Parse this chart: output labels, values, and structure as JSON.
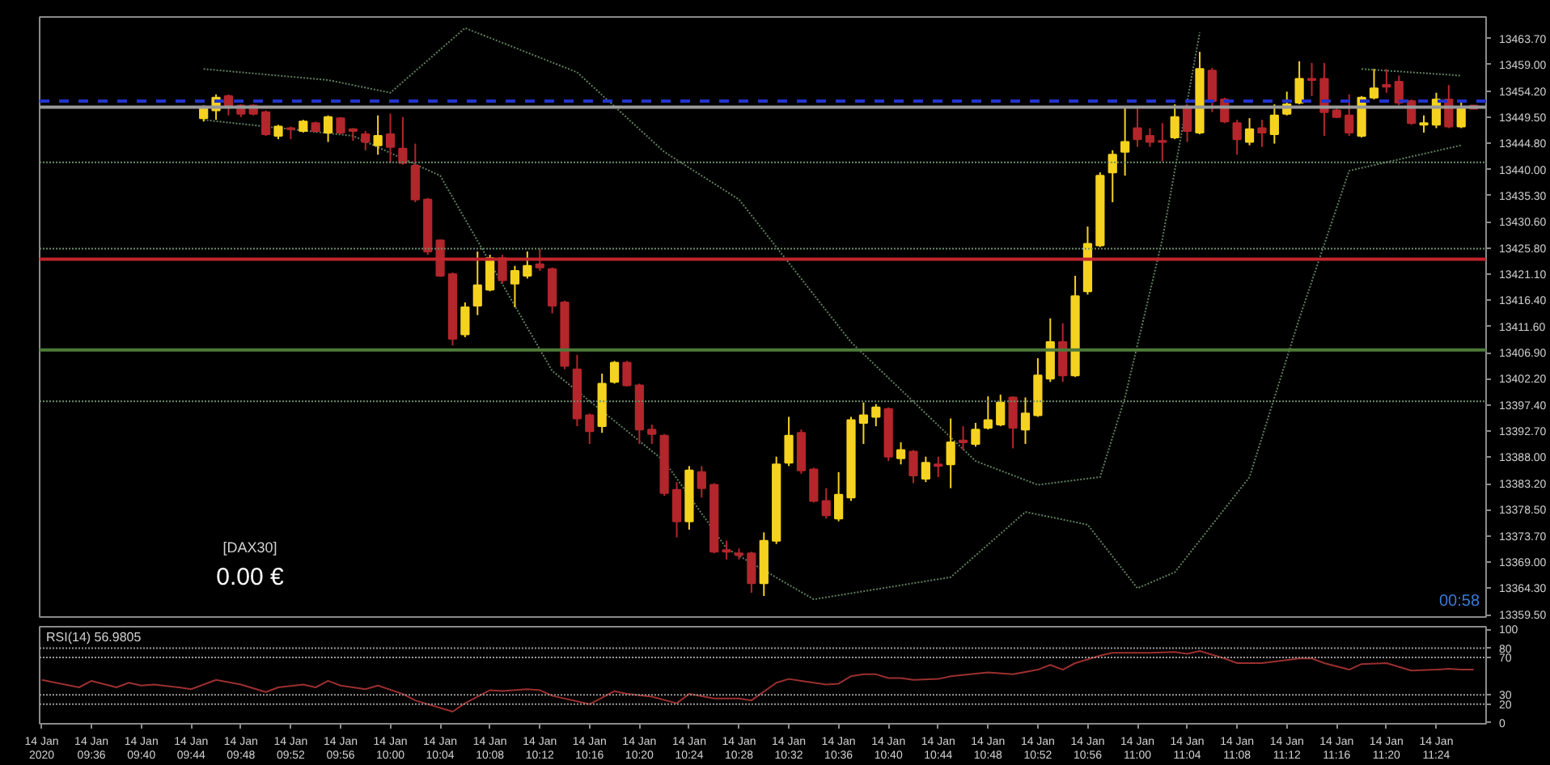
{
  "chart_data": [
    {
      "type": "candlestick",
      "grid": false,
      "tick_labels": "y",
      "annotations": [
        "[DAX30]",
        "0.00 €",
        "00:58"
      ],
      "xlim": [
        "2020-01-14T09:31:50",
        "2020-01-14T11:28"
      ],
      "ylim": [
        13359.1,
        13467.6
      ],
      "yticks": [
        {
          "value": 13463.7,
          "label": "13463.70"
        },
        {
          "value": 13459.0,
          "label": "13459.00"
        },
        {
          "value": 13454.2,
          "label": "13454.20"
        },
        {
          "value": 13449.5,
          "label": "13449.50"
        },
        {
          "value": 13444.8,
          "label": "13444.80"
        },
        {
          "value": 13440.0,
          "label": "13440.00"
        },
        {
          "value": 13435.3,
          "label": "13435.30"
        },
        {
          "value": 13430.6,
          "label": "13430.60"
        },
        {
          "value": 13425.8,
          "label": "13425.80"
        },
        {
          "value": 13421.1,
          "label": "13421.10"
        },
        {
          "value": 13416.4,
          "label": "13416.40"
        },
        {
          "value": 13411.6,
          "label": "13411.60"
        },
        {
          "value": 13406.9,
          "label": "13406.90"
        },
        {
          "value": 13402.2,
          "label": "13402.20"
        },
        {
          "value": 13397.4,
          "label": "13397.40"
        },
        {
          "value": 13392.7,
          "label": "13392.70"
        },
        {
          "value": 13388.0,
          "label": "13388.00"
        },
        {
          "value": 13383.2,
          "label": "13383.20"
        },
        {
          "value": 13378.5,
          "label": "13378.50"
        },
        {
          "value": 13373.7,
          "label": "13373.70"
        },
        {
          "value": 13369.0,
          "label": "13369.00"
        },
        {
          "value": 13364.3,
          "label": "13364.30"
        },
        {
          "value": 13359.5,
          "label": "13359.50"
        }
      ],
      "ref_lines": [
        {
          "axis": "y",
          "value": 13423.8,
          "color": "#c0262c",
          "line_style": "solid"
        },
        {
          "axis": "y",
          "value": 13407.4,
          "color": "#4e7a3a",
          "line_style": "solid"
        },
        {
          "axis": "y",
          "value": 13441.3,
          "color": "#6f8f6f",
          "line_style": "dotted"
        },
        {
          "axis": "y",
          "value": 13425.7,
          "color": "#6f8f6f",
          "line_style": "dotted"
        },
        {
          "axis": "y",
          "value": 13398.1,
          "color": "#6f8f6f",
          "line_style": "dotted"
        },
        {
          "axis": "y",
          "value": 13452.4,
          "color": "#2233cc",
          "line_style": "dashed"
        },
        {
          "axis": "y",
          "value": 13451.3,
          "color": "#9a9a9a",
          "line_style": "solid"
        }
      ],
      "series": [
        {
          "type": "line",
          "color": "#5f7f5f",
          "line_style": "dotted",
          "x": [
            "2020-01-14T09:45",
            "2020-01-14T09:55",
            "2020-01-14T10:00",
            "2020-01-14T10:06",
            "2020-01-14T10:15",
            "2020-01-14T10:22",
            "2020-01-14T10:28",
            "2020-01-14T10:37",
            "2020-01-14T10:47",
            "2020-01-14T10:52",
            "2020-01-14T10:57",
            "2020-01-14T10:59",
            "2020-01-14T11:02",
            "2020-01-14T11:05",
            "2020-01-14T11:10",
            "2020-01-14T11:18",
            "2020-01-14T11:26"
          ],
          "values": [
            13458.2,
            13456.2,
            13453.9,
            13465.6,
            13457.6,
            13443.2,
            13434.6,
            13408.8,
            13387.3,
            13383.0,
            13384.4,
            13398.8,
            13427.4,
            13464.8,
            null,
            13458.2,
            13457.0
          ]
        },
        {
          "type": "line",
          "color": "#5f7f5f",
          "line_style": "dotted",
          "x": [
            "2020-01-14T09:45",
            "2020-01-14T09:57",
            "2020-01-14T10:04",
            "2020-01-14T10:13",
            "2020-01-14T10:22",
            "2020-01-14T10:27",
            "2020-01-14T10:34",
            "2020-01-14T10:45",
            "2020-01-14T10:51",
            "2020-01-14T10:56",
            "2020-01-14T11:00",
            "2020-01-14T11:03",
            "2020-01-14T11:09",
            "2020-01-14T11:13",
            "2020-01-14T11:17",
            "2020-01-14T11:26"
          ],
          "values": [
            13449.0,
            13446.1,
            13438.9,
            13403.6,
            13387.3,
            13371.5,
            13362.3,
            13366.3,
            13378.1,
            13375.8,
            13364.3,
            13367.2,
            13384.4,
            13413.1,
            13439.8,
            13444.4
          ]
        }
      ],
      "x": [
        "2020-01-14T09:45",
        "2020-01-14T09:46",
        "2020-01-14T09:47",
        "2020-01-14T09:48",
        "2020-01-14T09:49",
        "2020-01-14T09:50",
        "2020-01-14T09:51",
        "2020-01-14T09:52",
        "2020-01-14T09:53",
        "2020-01-14T09:54",
        "2020-01-14T09:55",
        "2020-01-14T09:56",
        "2020-01-14T09:57",
        "2020-01-14T09:58",
        "2020-01-14T09:59",
        "2020-01-14T10:00",
        "2020-01-14T10:01",
        "2020-01-14T10:02",
        "2020-01-14T10:03",
        "2020-01-14T10:04",
        "2020-01-14T10:05",
        "2020-01-14T10:06",
        "2020-01-14T10:07",
        "2020-01-14T10:08",
        "2020-01-14T10:09",
        "2020-01-14T10:10",
        "2020-01-14T10:11",
        "2020-01-14T10:12",
        "2020-01-14T10:13",
        "2020-01-14T10:14",
        "2020-01-14T10:15",
        "2020-01-14T10:16",
        "2020-01-14T10:17",
        "2020-01-14T10:18",
        "2020-01-14T10:19",
        "2020-01-14T10:20",
        "2020-01-14T10:21",
        "2020-01-14T10:22",
        "2020-01-14T10:23",
        "2020-01-14T10:24",
        "2020-01-14T10:25",
        "2020-01-14T10:26",
        "2020-01-14T10:27",
        "2020-01-14T10:28",
        "2020-01-14T10:29",
        "2020-01-14T10:30",
        "2020-01-14T10:31",
        "2020-01-14T10:32",
        "2020-01-14T10:33",
        "2020-01-14T10:34",
        "2020-01-14T10:35",
        "2020-01-14T10:36",
        "2020-01-14T10:37",
        "2020-01-14T10:38",
        "2020-01-14T10:39",
        "2020-01-14T10:40",
        "2020-01-14T10:41",
        "2020-01-14T10:42",
        "2020-01-14T10:43",
        "2020-01-14T10:44",
        "2020-01-14T10:45",
        "2020-01-14T10:46",
        "2020-01-14T10:47",
        "2020-01-14T10:48",
        "2020-01-14T10:49",
        "2020-01-14T10:50",
        "2020-01-14T10:51",
        "2020-01-14T10:52",
        "2020-01-14T10:53",
        "2020-01-14T10:54",
        "2020-01-14T10:55",
        "2020-01-14T10:56",
        "2020-01-14T10:57",
        "2020-01-14T10:58",
        "2020-01-14T10:59",
        "2020-01-14T11:00",
        "2020-01-14T11:01",
        "2020-01-14T11:02",
        "2020-01-14T11:03",
        "2020-01-14T11:04",
        "2020-01-14T11:05",
        "2020-01-14T11:06",
        "2020-01-14T11:07",
        "2020-01-14T11:08",
        "2020-01-14T11:09",
        "2020-01-14T11:10",
        "2020-01-14T11:11",
        "2020-01-14T11:12",
        "2020-01-14T11:13",
        "2020-01-14T11:14",
        "2020-01-14T11:15",
        "2020-01-14T11:16",
        "2020-01-14T11:17",
        "2020-01-14T11:18",
        "2020-01-14T11:19",
        "2020-01-14T11:20",
        "2020-01-14T11:21",
        "2020-01-14T11:22",
        "2020-01-14T11:23",
        "2020-01-14T11:24",
        "2020-01-14T11:25",
        "2020-01-14T11:26",
        "2020-01-14T11:27"
      ],
      "ohlc": [
        [
          13449.3,
          13451.6,
          13448.7,
          13451.0
        ],
        [
          13450.7,
          13453.6,
          13449.0,
          13453.0
        ],
        [
          13453.3,
          13453.6,
          13449.8,
          13451.6
        ],
        [
          13451.6,
          13451.8,
          13449.5,
          13450.1
        ],
        [
          13451.6,
          13451.8,
          13449.8,
          13450.1
        ],
        [
          13450.4,
          13450.7,
          13446.1,
          13446.4
        ],
        [
          13446.1,
          13448.1,
          13445.5,
          13447.8
        ],
        [
          13447.5,
          13447.8,
          13445.5,
          13447.3
        ],
        [
          13447.0,
          13449.0,
          13446.7,
          13448.7
        ],
        [
          13448.4,
          13448.7,
          13446.7,
          13447.0
        ],
        [
          13446.7,
          13449.8,
          13445.0,
          13449.5
        ],
        [
          13449.3,
          13449.5,
          13446.4,
          13446.7
        ],
        [
          13447.3,
          13447.5,
          13445.2,
          13447.0
        ],
        [
          13446.4,
          13447.0,
          13443.5,
          13445.0
        ],
        [
          13444.4,
          13449.8,
          13442.7,
          13446.1
        ],
        [
          13446.4,
          13450.1,
          13441.2,
          13444.1
        ],
        [
          13443.8,
          13449.5,
          13440.9,
          13441.2
        ],
        [
          13440.7,
          13444.7,
          13434.1,
          13434.6
        ],
        [
          13434.6,
          13434.9,
          13424.6,
          13425.2
        ],
        [
          13427.2,
          13427.4,
          13420.6,
          13420.8
        ],
        [
          13421.1,
          13421.4,
          13408.2,
          13409.4
        ],
        [
          13410.2,
          13416.0,
          13409.7,
          13415.1
        ],
        [
          13415.4,
          13425.2,
          13413.7,
          13419.1
        ],
        [
          13418.3,
          13424.6,
          13418.0,
          13424.0
        ],
        [
          13424.0,
          13424.6,
          13419.4,
          13420.0
        ],
        [
          13419.4,
          13422.6,
          13415.1,
          13421.7
        ],
        [
          13420.8,
          13425.2,
          13420.3,
          13422.6
        ],
        [
          13422.9,
          13425.7,
          13421.7,
          13422.3
        ],
        [
          13422.0,
          13422.3,
          13414.0,
          13415.4
        ],
        [
          13416.0,
          13416.3,
          13403.9,
          13404.5
        ],
        [
          13403.9,
          13406.5,
          13393.6,
          13395.0
        ],
        [
          13395.6,
          13395.9,
          13390.4,
          13392.7
        ],
        [
          13393.6,
          13403.1,
          13392.4,
          13401.3
        ],
        [
          13401.6,
          13405.4,
          13401.3,
          13405.1
        ],
        [
          13405.1,
          13405.4,
          13400.8,
          13401.0
        ],
        [
          13401.0,
          13401.3,
          13390.4,
          13393.0
        ],
        [
          13393.0,
          13393.9,
          13390.4,
          13392.2
        ],
        [
          13391.9,
          13392.2,
          13381.0,
          13381.5
        ],
        [
          13382.1,
          13383.5,
          13373.5,
          13376.4
        ],
        [
          13376.4,
          13386.4,
          13374.9,
          13385.6
        ],
        [
          13385.3,
          13386.4,
          13380.7,
          13382.4
        ],
        [
          13383.0,
          13383.3,
          13370.6,
          13370.9
        ],
        [
          13371.2,
          13372.9,
          13369.5,
          13370.9
        ],
        [
          13370.6,
          13371.5,
          13369.5,
          13370.3
        ],
        [
          13370.6,
          13370.9,
          13363.5,
          13365.2
        ],
        [
          13365.2,
          13374.4,
          13362.9,
          13372.9
        ],
        [
          13372.9,
          13388.1,
          13372.3,
          13386.7
        ],
        [
          13387.0,
          13395.3,
          13386.4,
          13391.9
        ],
        [
          13392.4,
          13393.0,
          13385.0,
          13385.6
        ],
        [
          13385.8,
          13386.1,
          13379.8,
          13380.1
        ],
        [
          13380.1,
          13382.4,
          13376.9,
          13377.5
        ],
        [
          13376.9,
          13385.3,
          13376.4,
          13381.2
        ],
        [
          13380.7,
          13395.3,
          13380.1,
          13394.7
        ],
        [
          13394.2,
          13397.9,
          13390.4,
          13395.6
        ],
        [
          13395.3,
          13397.6,
          13393.6,
          13397.0
        ],
        [
          13396.7,
          13397.0,
          13387.3,
          13388.1
        ],
        [
          13387.8,
          13390.7,
          13386.7,
          13389.3
        ],
        [
          13389.0,
          13389.3,
          13383.3,
          13384.7
        ],
        [
          13384.1,
          13388.1,
          13383.5,
          13387.0
        ],
        [
          13386.7,
          13388.1,
          13384.4,
          13386.4
        ],
        [
          13386.7,
          13395.0,
          13382.4,
          13390.7
        ],
        [
          13391.0,
          13393.6,
          13389.3,
          13390.7
        ],
        [
          13390.4,
          13394.2,
          13389.9,
          13393.0
        ],
        [
          13393.3,
          13399.0,
          13393.0,
          13394.7
        ],
        [
          13393.9,
          13399.3,
          13393.6,
          13397.9
        ],
        [
          13398.8,
          13399.0,
          13389.6,
          13393.3
        ],
        [
          13393.0,
          13398.8,
          13390.4,
          13395.9
        ],
        [
          13395.6,
          13405.9,
          13395.3,
          13402.8
        ],
        [
          13402.2,
          13413.1,
          13401.6,
          13408.8
        ],
        [
          13408.8,
          13412.2,
          13401.6,
          13402.8
        ],
        [
          13402.8,
          13420.8,
          13402.5,
          13417.1
        ],
        [
          13418.0,
          13429.7,
          13417.4,
          13426.6
        ],
        [
          13426.3,
          13439.5,
          13426.0,
          13438.9
        ],
        [
          13439.5,
          13443.5,
          13434.1,
          13442.7
        ],
        [
          13443.2,
          13451.3,
          13438.9,
          13445.0
        ],
        [
          13447.5,
          13451.3,
          13444.1,
          13445.5
        ],
        [
          13446.1,
          13447.5,
          13444.1,
          13445.0
        ],
        [
          13445.2,
          13448.4,
          13441.5,
          13445.0
        ],
        [
          13445.8,
          13451.8,
          13445.5,
          13449.5
        ],
        [
          13451.0,
          13451.8,
          13445.0,
          13447.0
        ],
        [
          13446.7,
          13461.3,
          13446.4,
          13458.2
        ],
        [
          13457.9,
          13458.4,
          13450.4,
          13452.4
        ],
        [
          13452.7,
          13453.0,
          13448.4,
          13448.7
        ],
        [
          13448.4,
          13449.0,
          13442.7,
          13445.5
        ],
        [
          13445.0,
          13449.3,
          13444.4,
          13447.3
        ],
        [
          13447.5,
          13449.0,
          13444.1,
          13446.7
        ],
        [
          13446.4,
          13451.8,
          13444.7,
          13449.8
        ],
        [
          13450.1,
          13454.1,
          13449.8,
          13451.8
        ],
        [
          13452.1,
          13459.6,
          13451.8,
          13456.4
        ],
        [
          13456.4,
          13459.3,
          13453.3,
          13456.2
        ],
        [
          13456.4,
          13459.3,
          13446.1,
          13450.4
        ],
        [
          13450.7,
          13451.0,
          13449.3,
          13449.5
        ],
        [
          13449.8,
          13453.6,
          13446.1,
          13446.7
        ],
        [
          13446.1,
          13453.3,
          13445.8,
          13453.0
        ],
        [
          13453.0,
          13458.2,
          13452.7,
          13454.7
        ],
        [
          13455.3,
          13458.2,
          13453.9,
          13455.0
        ],
        [
          13455.9,
          13457.0,
          13451.6,
          13452.1
        ],
        [
          13452.4,
          13452.7,
          13448.1,
          13448.4
        ],
        [
          13448.1,
          13449.8,
          13446.7,
          13448.4
        ],
        [
          13448.1,
          13453.9,
          13447.5,
          13452.7
        ],
        [
          13452.7,
          13455.3,
          13447.5,
          13447.8
        ],
        [
          13447.8,
          13452.1,
          13447.5,
          13451.3
        ],
        [
          13451.6,
          13451.6,
          13451.0,
          13451.0
        ]
      ],
      "colors": [
        "#f5d21f",
        "#f5d21f",
        "#b3262b",
        "#b3262b",
        "#b3262b",
        "#b3262b",
        "#f5d21f",
        "#b3262b",
        "#f5d21f",
        "#b3262b",
        "#f5d21f",
        "#b3262b",
        "#b3262b",
        "#b3262b",
        "#f5d21f",
        "#b3262b",
        "#b3262b",
        "#b3262b",
        "#b3262b",
        "#b3262b",
        "#b3262b",
        "#f5d21f",
        "#f5d21f",
        "#f5d21f",
        "#b3262b",
        "#f5d21f",
        "#f5d21f",
        "#b3262b",
        "#b3262b",
        "#b3262b",
        "#b3262b",
        "#b3262b",
        "#f5d21f",
        "#f5d21f",
        "#b3262b",
        "#b3262b",
        "#b3262b",
        "#b3262b",
        "#b3262b",
        "#f5d21f",
        "#b3262b",
        "#b3262b",
        "#b3262b",
        "#b3262b",
        "#b3262b",
        "#f5d21f",
        "#f5d21f",
        "#f5d21f",
        "#b3262b",
        "#b3262b",
        "#b3262b",
        "#f5d21f",
        "#f5d21f",
        "#f5d21f",
        "#f5d21f",
        "#b3262b",
        "#f5d21f",
        "#b3262b",
        "#f5d21f",
        "#b3262b",
        "#f5d21f",
        "#b3262b",
        "#f5d21f",
        "#f5d21f",
        "#f5d21f",
        "#b3262b",
        "#f5d21f",
        "#f5d21f",
        "#f5d21f",
        "#b3262b",
        "#f5d21f",
        "#f5d21f",
        "#f5d21f",
        "#f5d21f",
        "#f5d21f",
        "#b3262b",
        "#b3262b",
        "#b3262b",
        "#f5d21f",
        "#b3262b",
        "#f5d21f",
        "#b3262b",
        "#b3262b",
        "#b3262b",
        "#f5d21f",
        "#b3262b",
        "#f5d21f",
        "#f5d21f",
        "#f5d21f",
        "#b3262b",
        "#b3262b",
        "#b3262b",
        "#b3262b",
        "#f5d21f",
        "#f5d21f",
        "#b3262b",
        "#b3262b",
        "#b3262b",
        "#f5d21f",
        "#f5d21f",
        "#b3262b",
        "#f5d21f",
        "#b3262b"
      ]
    },
    {
      "type": "line",
      "title": "RSI(14) 56.9805",
      "grid": false,
      "xlim": [
        "2020-01-14T09:31:50",
        "2020-01-14T11:28"
      ],
      "ylim": [
        -1,
        103
      ],
      "yticks": [
        0,
        20,
        30,
        70,
        80,
        100
      ],
      "xticks": [
        {
          "value": "2020-01-14T09:32",
          "label": "14 Jan 2020"
        },
        {
          "value": "2020-01-14T09:36",
          "label": "14 Jan 09:36"
        },
        {
          "value": "2020-01-14T09:40",
          "label": "14 Jan 09:40"
        },
        {
          "value": "2020-01-14T09:44",
          "label": "14 Jan 09:44"
        },
        {
          "value": "2020-01-14T09:48",
          "label": "14 Jan 09:48"
        },
        {
          "value": "2020-01-14T09:52",
          "label": "14 Jan 09:52"
        },
        {
          "value": "2020-01-14T09:56",
          "label": "14 Jan 09:56"
        },
        {
          "value": "2020-01-14T10:00",
          "label": "14 Jan 10:00"
        },
        {
          "value": "2020-01-14T10:04",
          "label": "14 Jan 10:04"
        },
        {
          "value": "2020-01-14T10:08",
          "label": "14 Jan 10:08"
        },
        {
          "value": "2020-01-14T10:12",
          "label": "14 Jan 10:12"
        },
        {
          "value": "2020-01-14T10:16",
          "label": "14 Jan 10:16"
        },
        {
          "value": "2020-01-14T10:20",
          "label": "14 Jan 10:20"
        },
        {
          "value": "2020-01-14T10:24",
          "label": "14 Jan 10:24"
        },
        {
          "value": "2020-01-14T10:28",
          "label": "14 Jan 10:28"
        },
        {
          "value": "2020-01-14T10:32",
          "label": "14 Jan 10:32"
        },
        {
          "value": "2020-01-14T10:36",
          "label": "14 Jan 10:36"
        },
        {
          "value": "2020-01-14T10:40",
          "label": "14 Jan 10:40"
        },
        {
          "value": "2020-01-14T10:44",
          "label": "14 Jan 10:44"
        },
        {
          "value": "2020-01-14T10:48",
          "label": "14 Jan 10:48"
        },
        {
          "value": "2020-01-14T10:52",
          "label": "14 Jan 10:52"
        },
        {
          "value": "2020-01-14T10:56",
          "label": "14 Jan 10:56"
        },
        {
          "value": "2020-01-14T11:00",
          "label": "14 Jan 11:00"
        },
        {
          "value": "2020-01-14T11:04",
          "label": "14 Jan 11:04"
        },
        {
          "value": "2020-01-14T11:08",
          "label": "14 Jan 11:08"
        },
        {
          "value": "2020-01-14T11:12",
          "label": "14 Jan 11:12"
        },
        {
          "value": "2020-01-14T11:16",
          "label": "14 Jan 11:16"
        },
        {
          "value": "2020-01-14T11:20",
          "label": "14 Jan 11:20"
        },
        {
          "value": "2020-01-14T11:24",
          "label": "14 Jan 11:24"
        }
      ],
      "ref_lines": [
        {
          "axis": "y",
          "value": 80,
          "color": "#9a9a9a",
          "line_style": "dotted"
        },
        {
          "axis": "y",
          "value": 70,
          "color": "#9a9a9a",
          "line_style": "dotted"
        },
        {
          "axis": "y",
          "value": 30,
          "color": "#9a9a9a",
          "line_style": "dotted"
        },
        {
          "axis": "y",
          "value": 20,
          "color": "#9a9a9a",
          "line_style": "dotted"
        }
      ],
      "series": [
        {
          "color": "#9b2f2f",
          "line_style": "solid",
          "x": [
            "2020-01-14T09:32",
            "2020-01-14T09:35",
            "2020-01-14T09:36",
            "2020-01-14T09:38",
            "2020-01-14T09:39",
            "2020-01-14T09:40",
            "2020-01-14T09:41",
            "2020-01-14T09:43",
            "2020-01-14T09:44",
            "2020-01-14T09:46",
            "2020-01-14T09:48",
            "2020-01-14T09:50",
            "2020-01-14T09:51",
            "2020-01-14T09:53",
            "2020-01-14T09:54",
            "2020-01-14T09:55",
            "2020-01-14T09:56",
            "2020-01-14T09:58",
            "2020-01-14T09:59",
            "2020-01-14T10:01",
            "2020-01-14T10:02",
            "2020-01-14T10:05",
            "2020-01-14T10:06",
            "2020-01-14T10:08",
            "2020-01-14T10:09",
            "2020-01-14T10:11",
            "2020-01-14T10:12",
            "2020-01-14T10:13",
            "2020-01-14T10:16",
            "2020-01-14T10:18",
            "2020-01-14T10:19",
            "2020-01-14T10:21",
            "2020-01-14T10:23",
            "2020-01-14T10:24",
            "2020-01-14T10:26",
            "2020-01-14T10:28",
            "2020-01-14T10:29",
            "2020-01-14T10:31",
            "2020-01-14T10:32",
            "2020-01-14T10:33",
            "2020-01-14T10:35",
            "2020-01-14T10:36",
            "2020-01-14T10:37",
            "2020-01-14T10:38",
            "2020-01-14T10:39",
            "2020-01-14T10:40",
            "2020-01-14T10:41",
            "2020-01-14T10:42",
            "2020-01-14T10:44",
            "2020-01-14T10:45",
            "2020-01-14T10:48",
            "2020-01-14T10:50",
            "2020-01-14T10:52",
            "2020-01-14T10:53",
            "2020-01-14T10:54",
            "2020-01-14T10:55",
            "2020-01-14T10:57",
            "2020-01-14T10:58",
            "2020-01-14T11:01",
            "2020-01-14T11:03",
            "2020-01-14T11:04",
            "2020-01-14T11:05",
            "2020-01-14T11:07",
            "2020-01-14T11:08",
            "2020-01-14T11:10",
            "2020-01-14T11:13",
            "2020-01-14T11:14",
            "2020-01-14T11:15",
            "2020-01-14T11:17",
            "2020-01-14T11:18",
            "2020-01-14T11:20",
            "2020-01-14T11:22",
            "2020-01-14T11:24",
            "2020-01-14T11:25",
            "2020-01-14T11:26",
            "2020-01-14T11:27"
          ],
          "values": [
            46,
            38,
            45,
            38,
            43,
            40,
            41,
            38,
            36,
            46,
            41,
            33,
            38,
            41,
            38,
            45,
            40,
            36,
            40,
            31,
            24,
            12,
            21,
            35,
            34,
            36,
            35,
            29,
            20,
            34,
            31,
            28,
            21,
            31,
            26,
            26,
            24,
            43,
            47,
            45,
            41,
            42,
            50,
            52,
            52,
            48,
            48,
            46,
            47,
            50,
            54,
            52,
            57,
            62,
            57,
            64,
            72,
            75,
            75,
            76,
            74,
            77,
            69,
            64,
            64,
            69,
            69,
            64,
            57,
            63,
            64,
            56,
            57,
            58,
            57,
            57
          ]
        }
      ]
    }
  ]
}
